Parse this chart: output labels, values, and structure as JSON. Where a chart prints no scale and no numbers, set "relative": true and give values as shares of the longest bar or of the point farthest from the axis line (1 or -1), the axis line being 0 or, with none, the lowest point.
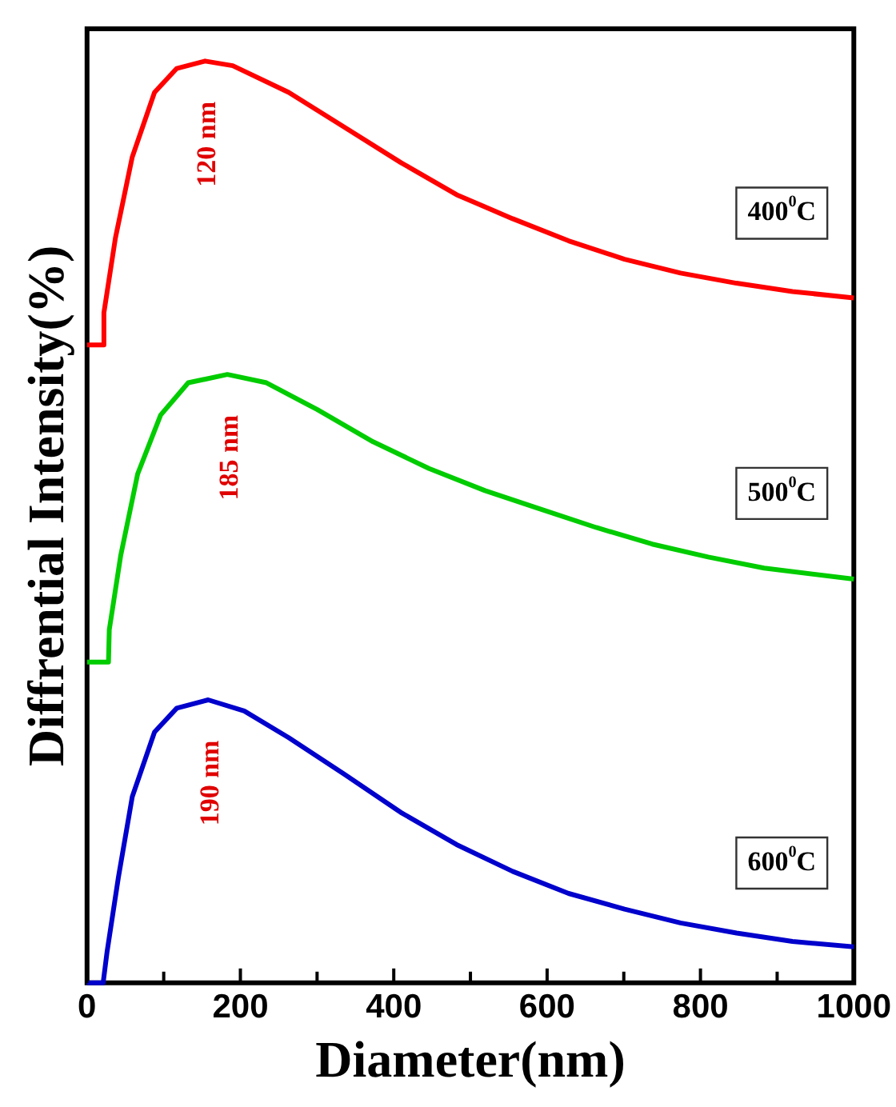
{
  "chart_data": {
    "type": "line",
    "xlabel": "Diameter(nm)",
    "ylabel": "Diffrential Intensity(%)",
    "relative": true,
    "xlim": [
      0,
      1000
    ],
    "xticks": [
      0,
      {
        "value": 100,
        "label": null
      },
      200,
      {
        "value": 300,
        "label": null
      },
      400,
      {
        "value": 500,
        "label": null
      },
      600,
      {
        "value": 700,
        "label": null
      },
      800,
      {
        "value": 900,
        "label": null
      },
      1000
    ],
    "grid": false,
    "legend": false,
    "marker": "none",
    "line_style": "solid",
    "series": [
      {
        "name": "400$^{0}$C",
        "color": "#ff0000",
        "x": [
          0,
          21,
          22,
          37,
          59,
          88,
          117,
          154,
          190,
          263,
          336,
          409,
          482,
          555,
          628,
          701,
          774,
          847,
          920,
          1000
        ],
        "values": [
          0.692,
          0.692,
          0.727,
          0.808,
          0.896,
          0.966,
          0.992,
          1.0,
          0.995,
          0.966,
          0.928,
          0.89,
          0.855,
          0.829,
          0.805,
          0.785,
          0.77,
          0.759,
          0.75,
          0.743
        ]
      },
      {
        "name": "500$^{0}$C",
        "color": "#00cc00",
        "x": [
          0,
          28,
          29,
          44,
          66,
          96,
          132,
          183,
          234,
          300,
          373,
          446,
          519,
          591,
          664,
          737,
          810,
          883,
          1000
        ],
        "values": [
          0.348,
          0.348,
          0.383,
          0.464,
          0.552,
          0.616,
          0.651,
          0.66,
          0.651,
          0.622,
          0.587,
          0.558,
          0.534,
          0.514,
          0.494,
          0.476,
          0.462,
          0.45,
          0.438
        ]
      },
      {
        "name": "600$^{0}$C",
        "color": "#0000cc",
        "x": [
          0,
          21,
          26,
          41,
          59,
          88,
          117,
          158,
          205,
          263,
          336,
          409,
          482,
          555,
          628,
          701,
          774,
          847,
          920,
          1000
        ],
        "values": [
          0,
          0,
          0.033,
          0.115,
          0.202,
          0.272,
          0.298,
          0.307,
          0.295,
          0.266,
          0.226,
          0.185,
          0.15,
          0.121,
          0.097,
          0.08,
          0.065,
          0.054,
          0.045,
          0.039
        ]
      }
    ],
    "annotations": [
      "120 nm",
      "185 nm",
      "190 nm"
    ]
  }
}
